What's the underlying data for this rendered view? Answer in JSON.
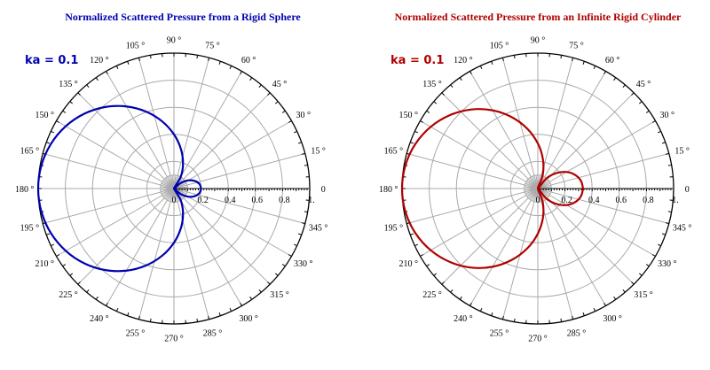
{
  "chart_data": [
    {
      "type": "polar-line",
      "title": "Normalized Scattered Pressure from a Rigid Sphere",
      "annotation": "ka  =  0.1",
      "color": "#0000b0",
      "rlim": [
        0,
        1
      ],
      "radial_ticks": [
        "0",
        "0.2",
        "0.4",
        "0.6",
        "0.8",
        "1."
      ],
      "angle_ticks_deg": [
        0,
        15,
        30,
        45,
        60,
        75,
        90,
        105,
        120,
        135,
        150,
        165,
        180,
        195,
        210,
        225,
        240,
        255,
        270,
        285,
        300,
        315,
        330,
        345
      ],
      "grid": true,
      "mirror_symmetric": true,
      "theta_deg": [
        0,
        10,
        20,
        30,
        40,
        48,
        60,
        70,
        80,
        90,
        100,
        110,
        120,
        130,
        140,
        150,
        160,
        170,
        180
      ],
      "r": [
        0.2,
        0.191,
        0.164,
        0.12,
        0.06,
        0.0,
        0.1,
        0.195,
        0.296,
        0.4,
        0.504,
        0.605,
        0.7,
        0.786,
        0.86,
        0.92,
        0.964,
        0.991,
        1.0
      ]
    },
    {
      "type": "polar-line",
      "title": "Normalized Scattered Pressure from an Infinite Rigid Cylinder",
      "annotation": "ka  =  0.1",
      "color": "#b00000",
      "rlim": [
        0,
        1
      ],
      "radial_ticks": [
        "0",
        "0.2",
        "0.4",
        "0.6",
        "0.8",
        "1."
      ],
      "angle_ticks_deg": [
        0,
        15,
        30,
        45,
        60,
        75,
        90,
        105,
        120,
        135,
        150,
        165,
        180,
        195,
        210,
        225,
        240,
        255,
        270,
        285,
        300,
        315,
        330,
        345
      ],
      "grid": true,
      "mirror_symmetric": true,
      "theta_deg": [
        0,
        10,
        20,
        30,
        40,
        50,
        60,
        70,
        80,
        90,
        100,
        110,
        120,
        130,
        140,
        150,
        160,
        170,
        180
      ],
      "r": [
        0.333,
        0.323,
        0.293,
        0.244,
        0.177,
        0.095,
        0.0,
        0.105,
        0.218,
        0.333,
        0.449,
        0.561,
        0.667,
        0.762,
        0.844,
        0.911,
        0.96,
        0.99,
        1.0
      ]
    }
  ]
}
